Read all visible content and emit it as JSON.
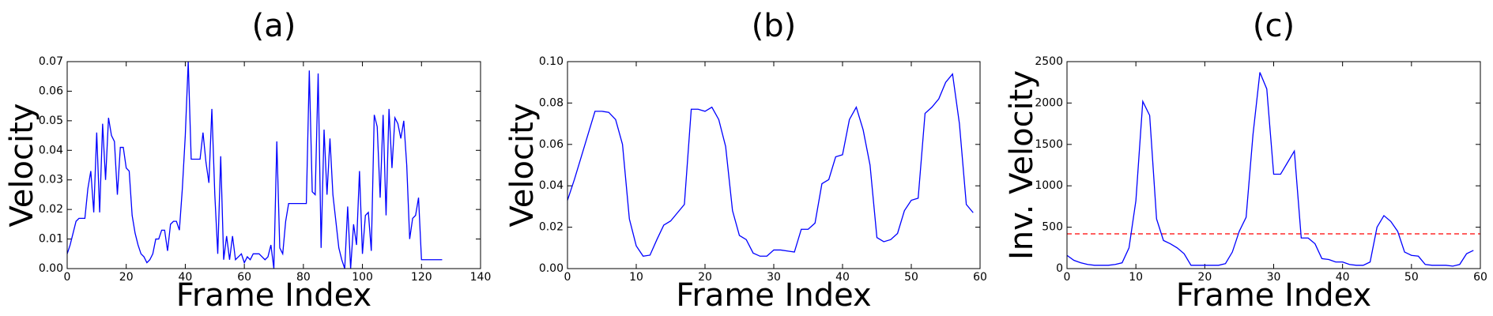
{
  "chart_data": [
    {
      "type": "line",
      "title": "(a)",
      "x_label": "Frame Index",
      "y_label": "Velocity",
      "color": "#0000ff",
      "values": [
        0.005,
        0.008,
        0.012,
        0.016,
        0.017,
        0.017,
        0.017,
        0.027,
        0.033,
        0.019,
        0.046,
        0.019,
        0.049,
        0.03,
        0.051,
        0.045,
        0.043,
        0.025,
        0.041,
        0.041,
        0.034,
        0.033,
        0.018,
        0.012,
        0.008,
        0.005,
        0.004,
        0.002,
        0.003,
        0.005,
        0.01,
        0.01,
        0.013,
        0.013,
        0.006,
        0.015,
        0.016,
        0.016,
        0.013,
        0.027,
        0.045,
        0.07,
        0.037,
        0.037,
        0.037,
        0.037,
        0.046,
        0.036,
        0.029,
        0.054,
        0.025,
        0.005,
        0.038,
        0.003,
        0.011,
        0.003,
        0.011,
        0.003,
        0.004,
        0.005,
        0.002,
        0.004,
        0.003,
        0.005,
        0.005,
        0.005,
        0.004,
        0.003,
        0.004,
        0.008,
        0.0,
        0.043,
        0.007,
        0.005,
        0.016,
        0.022,
        0.022,
        0.022,
        0.022,
        0.022,
        0.022,
        0.022,
        0.067,
        0.026,
        0.025,
        0.066,
        0.007,
        0.047,
        0.025,
        0.044,
        0.025,
        0.016,
        0.007,
        0.003,
        0.0,
        0.021,
        0.0,
        0.015,
        0.008,
        0.033,
        0.005,
        0.018,
        0.019,
        0.006,
        0.052,
        0.048,
        0.024,
        0.052,
        0.018,
        0.054,
        0.034,
        0.051,
        0.049,
        0.044,
        0.05,
        0.035,
        0.01,
        0.017,
        0.018,
        0.024,
        0.003,
        0.003,
        0.003,
        0.003,
        0.003,
        0.003,
        0.003,
        0.003
      ],
      "xlim": [
        0,
        140
      ],
      "xticks": [
        0,
        20,
        40,
        60,
        80,
        100,
        120,
        140
      ],
      "ylim": [
        0,
        0.07
      ],
      "yticks": [
        {
          "value": 0,
          "label": "0.00"
        },
        {
          "value": 0.01,
          "label": "0.01"
        },
        {
          "value": 0.02,
          "label": "0.02"
        },
        {
          "value": 0.03,
          "label": "0.03"
        },
        {
          "value": 0.04,
          "label": "0.04"
        },
        {
          "value": 0.05,
          "label": "0.05"
        },
        {
          "value": 0.06,
          "label": "0.06"
        },
        {
          "value": 0.07,
          "label": "0.07"
        }
      ]
    },
    {
      "type": "line",
      "title": "(b)",
      "x_label": "Frame Index",
      "y_label": "Velocity",
      "color": "#0000ff",
      "values": [
        0.033,
        0.043,
        0.054,
        0.065,
        0.076,
        0.076,
        0.0755,
        0.072,
        0.06,
        0.024,
        0.011,
        0.006,
        0.0065,
        0.014,
        0.021,
        0.023,
        0.027,
        0.031,
        0.077,
        0.077,
        0.076,
        0.078,
        0.072,
        0.059,
        0.028,
        0.016,
        0.014,
        0.0075,
        0.006,
        0.006,
        0.009,
        0.009,
        0.0085,
        0.008,
        0.019,
        0.019,
        0.022,
        0.041,
        0.043,
        0.054,
        0.055,
        0.072,
        0.078,
        0.067,
        0.05,
        0.015,
        0.013,
        0.014,
        0.017,
        0.028,
        0.033,
        0.034,
        0.075,
        0.078,
        0.082,
        0.09,
        0.094,
        0.07,
        0.031,
        0.027
      ],
      "xlim": [
        0,
        60
      ],
      "xticks": [
        0,
        10,
        20,
        30,
        40,
        50,
        60
      ],
      "ylim": [
        0,
        0.1
      ],
      "yticks": [
        {
          "value": 0,
          "label": "0.00"
        },
        {
          "value": 0.02,
          "label": "0.02"
        },
        {
          "value": 0.04,
          "label": "0.04"
        },
        {
          "value": 0.06,
          "label": "0.06"
        },
        {
          "value": 0.08,
          "label": "0.08"
        },
        {
          "value": 0.1,
          "label": "0.10"
        }
      ]
    },
    {
      "type": "line",
      "title": "(c)",
      "x_label": "Frame Index",
      "y_label": "Inv. Velocity",
      "color": "#0000ff",
      "values": [
        160,
        100,
        70,
        50,
        40,
        40,
        40,
        50,
        70,
        250,
        820,
        2020,
        1850,
        600,
        340,
        300,
        250,
        180,
        40,
        40,
        40,
        40,
        40,
        60,
        200,
        450,
        620,
        1620,
        2370,
        2170,
        1140,
        1140,
        1280,
        1420,
        370,
        370,
        300,
        120,
        110,
        80,
        80,
        50,
        40,
        40,
        80,
        500,
        640,
        570,
        450,
        200,
        160,
        150,
        50,
        40,
        40,
        40,
        30,
        50,
        180,
        220
      ],
      "threshold": {
        "value": 420,
        "color": "#ff0000",
        "dashed": true
      },
      "xlim": [
        0,
        60
      ],
      "xticks": [
        0,
        10,
        20,
        30,
        40,
        50,
        60
      ],
      "ylim": [
        0,
        2500
      ],
      "yticks": [
        0,
        500,
        1000,
        1500,
        2000,
        2500
      ]
    }
  ]
}
